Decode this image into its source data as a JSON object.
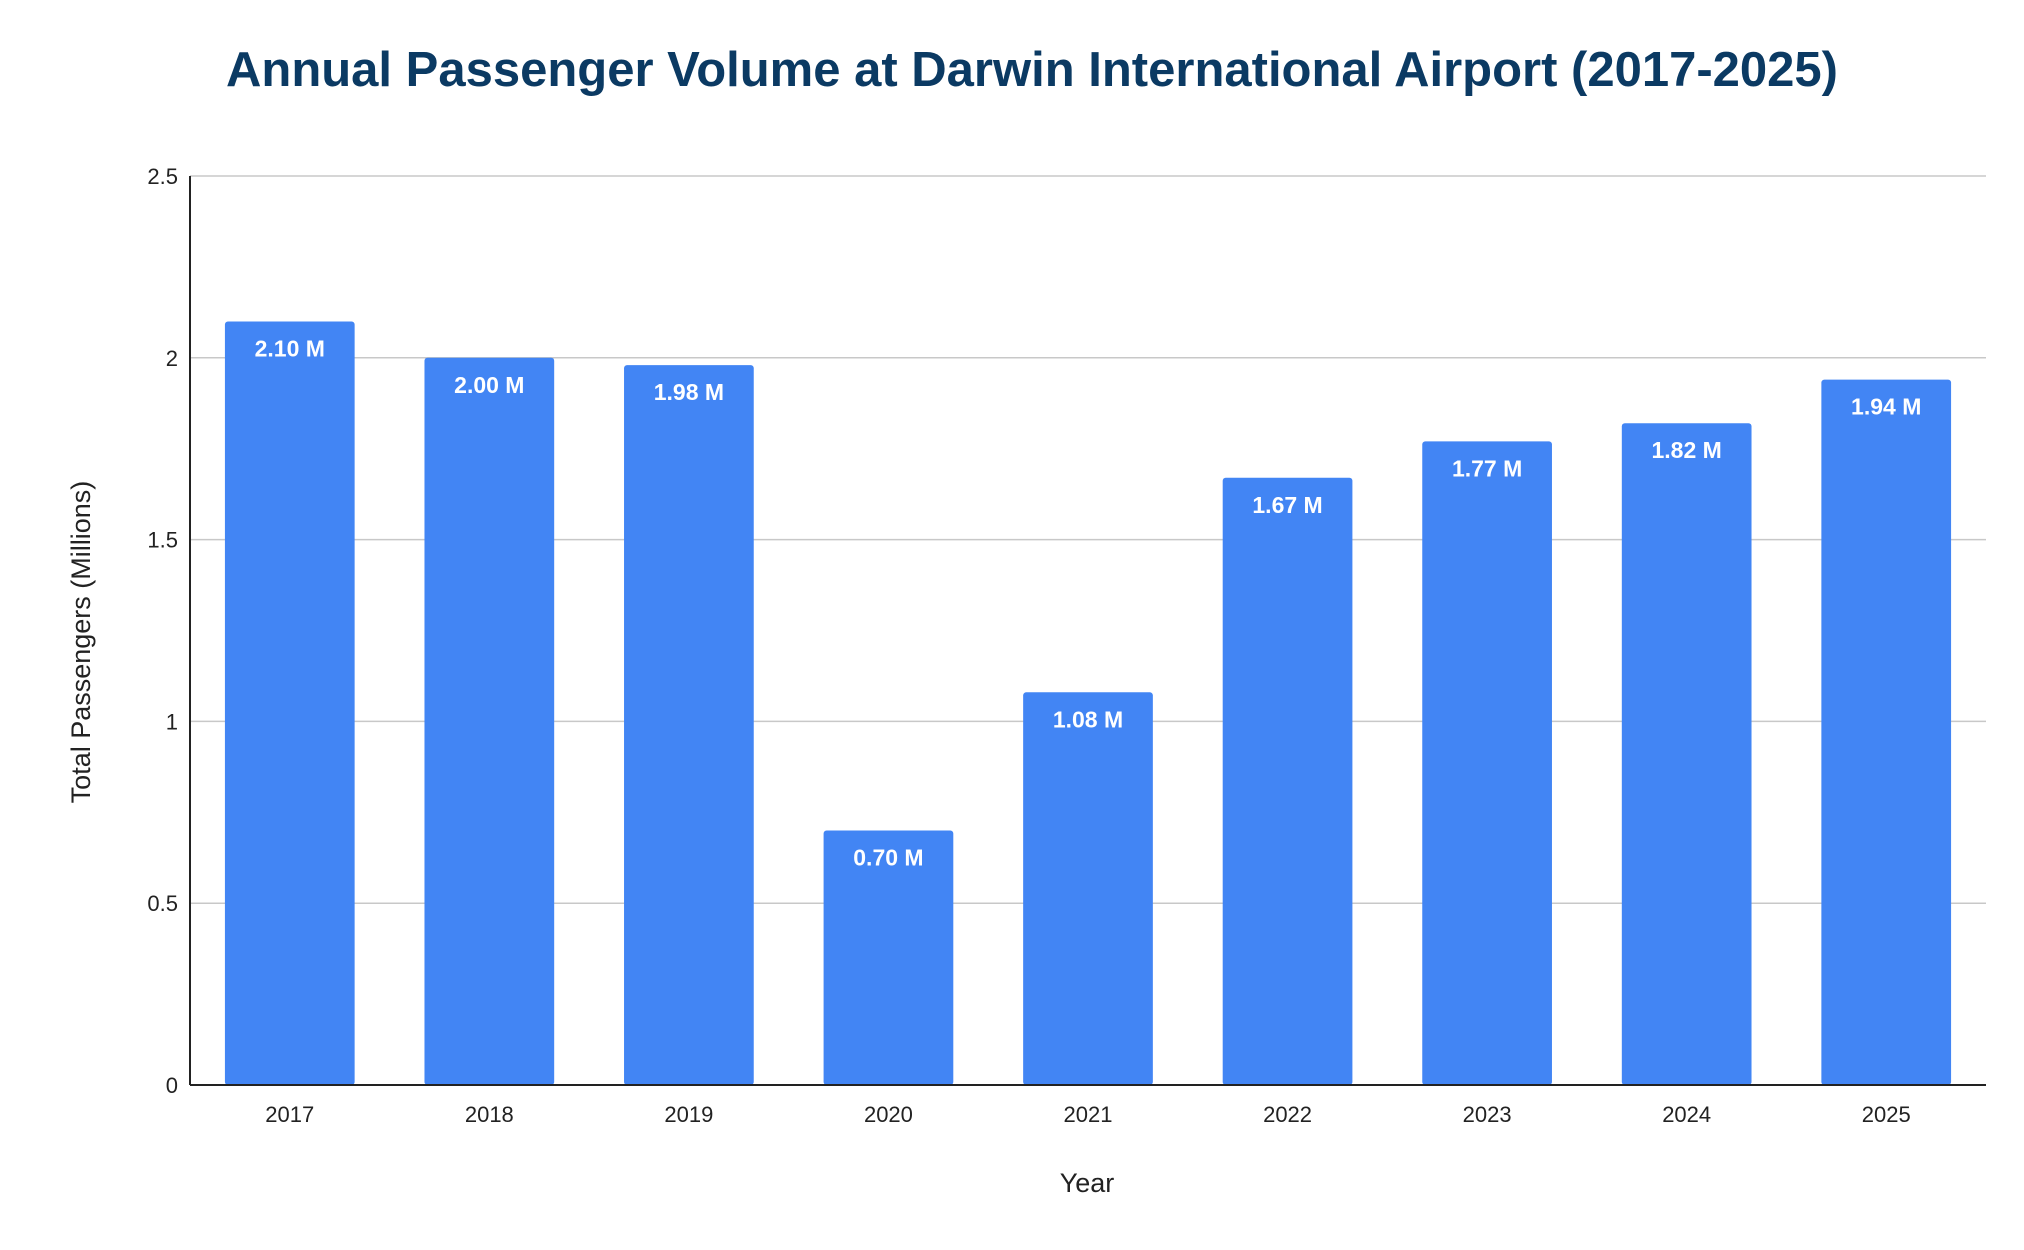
{
  "chart_data": {
    "type": "bar",
    "title": "Annual Passenger Volume at Darwin International Airport (2017-2025)",
    "xlabel": "Year",
    "ylabel": "Total Passengers (Millions)",
    "categories": [
      "2017",
      "2018",
      "2019",
      "2020",
      "2021",
      "2022",
      "2023",
      "2024",
      "2025"
    ],
    "values": [
      2.1,
      2.0,
      1.98,
      0.7,
      1.08,
      1.67,
      1.77,
      1.82,
      1.94
    ],
    "data_labels": [
      "2.10 M",
      "2.00 M",
      "1.98 M",
      "0.70 M",
      "1.08 M",
      "1.67 M",
      "1.77 M",
      "1.82 M",
      "1.94 M"
    ],
    "ylim": [
      0,
      2.5
    ],
    "yticks": [
      0,
      0.5,
      1,
      1.5,
      2,
      2.5
    ],
    "ytick_labels": [
      "0",
      "0.5",
      "1",
      "1.5",
      "2",
      "2.5"
    ],
    "grid": true,
    "legend": "none",
    "colors": {
      "bar": "#4285f4",
      "title": "#0b3a63",
      "data_label": "#ffffff"
    }
  }
}
